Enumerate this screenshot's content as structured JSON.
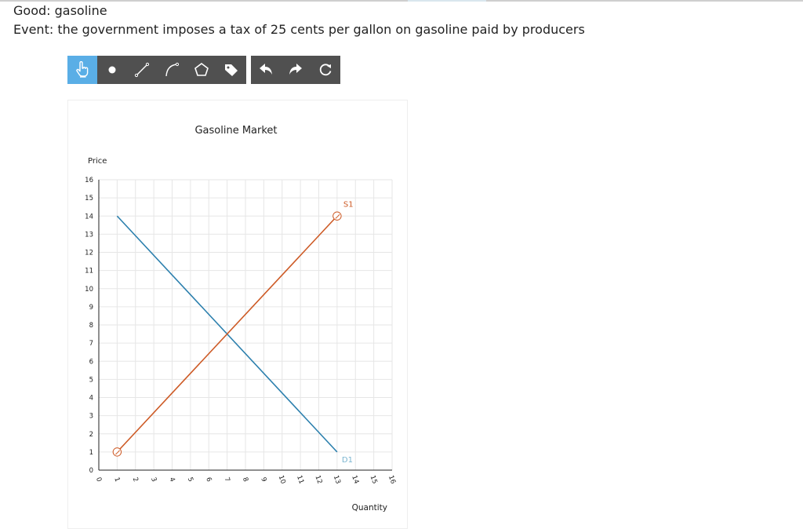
{
  "header": {
    "good_line": "Good: gasoline",
    "event_line": "Event: the government imposes a tax of 25 cents per gallon on gasoline paid by producers"
  },
  "toolbar": {
    "tools": [
      {
        "icon": "hand-pointer-icon",
        "active": true
      },
      {
        "icon": "point-icon"
      },
      {
        "icon": "line-icon"
      },
      {
        "icon": "curve-icon"
      },
      {
        "icon": "polygon-icon"
      },
      {
        "icon": "label-tag-icon"
      }
    ],
    "history": [
      {
        "icon": "undo-icon"
      },
      {
        "icon": "redo-icon"
      },
      {
        "icon": "reset-icon"
      }
    ]
  },
  "colors": {
    "demand": "#2b7fad",
    "supply": "#cd5a25",
    "grid": "#e6e6e6",
    "axis": "#222222",
    "toolbar_bg": "#505050",
    "toolbar_active": "#5aaee6"
  },
  "chart_data": {
    "type": "line",
    "title": "Gasoline Market",
    "xlabel": "Quantity",
    "ylabel": "Price",
    "xlim": [
      0,
      16
    ],
    "ylim": [
      0,
      16
    ],
    "x_ticks": [
      "0",
      "1",
      "2",
      "3",
      "4",
      "5",
      "6",
      "7",
      "8",
      "9",
      "10",
      "11",
      "12",
      "13",
      "14",
      "15",
      "16"
    ],
    "y_ticks": [
      "0",
      "1",
      "2",
      "3",
      "4",
      "5",
      "6",
      "7",
      "8",
      "9",
      "10",
      "11",
      "12",
      "13",
      "14",
      "15",
      "16"
    ],
    "grid": true,
    "series": [
      {
        "name": "D1",
        "color": "#2b7fad",
        "points": [
          [
            1,
            14
          ],
          [
            13,
            1
          ]
        ]
      },
      {
        "name": "S1",
        "color": "#cd5a25",
        "points": [
          [
            1,
            1
          ],
          [
            13,
            14
          ]
        ],
        "handles": true
      }
    ]
  }
}
